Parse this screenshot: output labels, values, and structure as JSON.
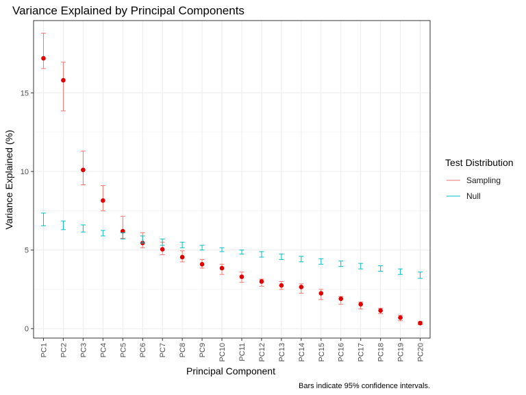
{
  "chart_data": {
    "type": "scatter",
    "title": "Variance Explained by Principal Components",
    "xlabel": "Principal Component",
    "ylabel": "Variance Explained (%)",
    "caption": "Bars indicate 95% confidence intervals.",
    "ylim": [
      -0.6,
      19.6
    ],
    "yticks": [
      0,
      5,
      10,
      15
    ],
    "yticklabels": [
      "0",
      "5",
      "10",
      "15"
    ],
    "grid": true,
    "legend_position": "right",
    "legend_title": "Test Distribution",
    "categories": [
      "PC1",
      "PC2",
      "PC3",
      "PC4",
      "PC5",
      "PC6",
      "PC7",
      "PC8",
      "PC9",
      "PC10",
      "PC11",
      "PC12",
      "PC13",
      "PC14",
      "PC15",
      "PC16",
      "PC17",
      "PC18",
      "PC19",
      "PC20"
    ],
    "series": [
      {
        "name": "Sampling",
        "color": "#F8766D",
        "point_color": "#E00000",
        "values": [
          17.2,
          15.8,
          10.1,
          8.15,
          6.2,
          5.45,
          5.05,
          4.55,
          4.1,
          3.85,
          3.3,
          3.0,
          2.75,
          2.65,
          2.25,
          1.9,
          1.55,
          1.15,
          0.7,
          0.35
        ],
        "lower": [
          16.55,
          13.85,
          9.15,
          7.5,
          5.75,
          5.15,
          4.7,
          4.25,
          3.85,
          3.45,
          2.95,
          2.7,
          2.5,
          2.25,
          1.85,
          1.55,
          1.25,
          0.95,
          0.5,
          0.25
        ],
        "upper": [
          18.8,
          16.95,
          11.3,
          9.1,
          7.15,
          6.1,
          5.5,
          4.95,
          4.4,
          4.1,
          3.6,
          3.15,
          3.0,
          2.85,
          2.5,
          2.05,
          1.7,
          1.3,
          0.85,
          0.45
        ]
      },
      {
        "name": "Null",
        "color": "#00BFC4",
        "values": [
          null,
          null,
          null,
          null,
          null,
          null,
          null,
          null,
          null,
          null,
          null,
          null,
          null,
          null,
          null,
          null,
          null,
          null,
          null,
          null
        ],
        "lower": [
          6.55,
          6.3,
          6.15,
          5.9,
          5.7,
          5.45,
          5.3,
          5.15,
          5.0,
          4.9,
          4.75,
          4.55,
          4.4,
          4.25,
          4.1,
          3.95,
          3.8,
          3.65,
          3.45,
          3.2
        ],
        "upper": [
          7.35,
          6.85,
          6.6,
          6.25,
          6.1,
          5.9,
          5.7,
          5.5,
          5.3,
          5.15,
          5.0,
          4.9,
          4.75,
          4.6,
          4.45,
          4.3,
          4.15,
          4.0,
          3.8,
          3.6
        ]
      }
    ]
  }
}
